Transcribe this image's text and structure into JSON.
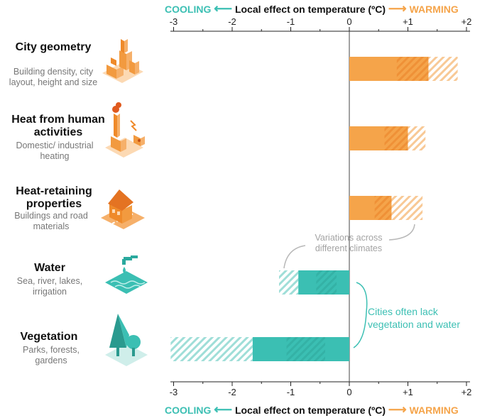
{
  "header_top": {
    "cooling": "COOLING",
    "cool_arrow": "⟵",
    "axis_title": "Local effect on temperature (ºC)",
    "warm_arrow": "⟶",
    "warming": "WARMING"
  },
  "header_bottom": {
    "cooling": "COOLING",
    "cool_arrow": "⟵",
    "axis_title": "Local effect on temperature (ºC)",
    "warm_arrow": "⟶",
    "warming": "WARMING"
  },
  "rows": [
    {
      "title": "City geometry",
      "subtitle": "Building density, city layout, height and size",
      "icon": "city-buildings-icon"
    },
    {
      "title": "Heat from human activities",
      "subtitle": "Domestic/ industrial heating",
      "icon": "factory-smoke-icon"
    },
    {
      "title": "Heat-retaining properties",
      "subtitle": "Buildings and road materials",
      "icon": "house-road-icon"
    },
    {
      "title": "Water",
      "subtitle": "Sea, river, lakes, irrigation",
      "icon": "water-tap-icon"
    },
    {
      "title": "Vegetation",
      "subtitle": "Parks, forests, gardens",
      "icon": "tree-icon"
    }
  ],
  "annotations": {
    "variations": "Variations across different climates",
    "lack": "Cities often lack vegetation and water"
  },
  "colors": {
    "warming": "#f5a44a",
    "warming_dark": "#ee8a2c",
    "cooling": "#3bbfb3",
    "cooling_dark": "#2aa99e"
  },
  "chart_data": {
    "type": "bar",
    "orientation": "horizontal",
    "xlabel": "Local effect on temperature (ºC)",
    "xlim": [
      -3,
      2.1
    ],
    "ticks": [
      -3,
      -2,
      -1,
      0,
      1,
      2
    ],
    "tick_labels": [
      "-3",
      "-2",
      "-1",
      "0",
      "+1",
      "+2"
    ],
    "categories": [
      "City geometry",
      "Heat from human activities",
      "Heat-retaining properties",
      "Water",
      "Vegetation"
    ],
    "solid_values": [
      1.35,
      1.0,
      0.72,
      -0.87,
      -1.65
    ],
    "variation_extent": [
      1.85,
      1.3,
      1.25,
      -1.2,
      -3.05
    ]
  }
}
